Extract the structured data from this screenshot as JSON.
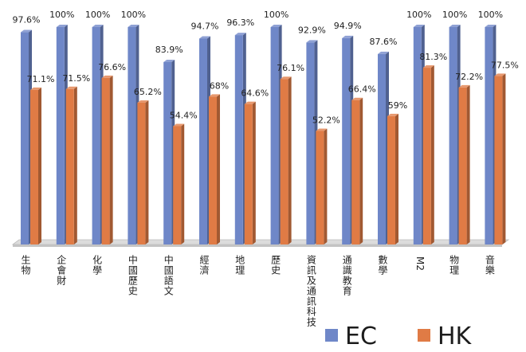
{
  "chart_data": {
    "type": "bar",
    "title": "",
    "xlabel": "",
    "ylabel": "",
    "ylim": [
      0,
      100
    ],
    "grid": false,
    "legend_position": "bottom-right",
    "categories": [
      "生物",
      "企會財",
      "化學",
      "中國歷史",
      "中國語文",
      "經濟",
      "地理",
      "歷史",
      "資訊及通訊科技",
      "通識教育",
      "數學",
      "M2",
      "物理",
      "音樂"
    ],
    "series": [
      {
        "name": "EC",
        "color": "#6f87c8",
        "values": [
          97.6,
          100,
          100,
          100,
          83.9,
          94.7,
          96.3,
          100,
          92.9,
          94.9,
          87.6,
          100,
          100,
          100
        ],
        "labels": [
          "97.6%",
          "100%",
          "100%",
          "100%",
          "83.9%",
          "94.7%",
          "96.3%",
          "100%",
          "92.9%",
          "94.9%",
          "87.6%",
          "100%",
          "100%",
          "100%"
        ]
      },
      {
        "name": "HK",
        "color": "#e07b45",
        "values": [
          71.1,
          71.5,
          76.6,
          65.2,
          54.4,
          68,
          64.6,
          76.1,
          52.2,
          66.4,
          59,
          81.3,
          72.2,
          77.5
        ],
        "labels": [
          "71.1%",
          "71.5%",
          "76.6%",
          "65.2%",
          "54.4%",
          "68%",
          "64.6%",
          "76.1%",
          "52.2%",
          "66.4%",
          "59%",
          "81.3%",
          "72.2%",
          "77.5%"
        ]
      }
    ]
  }
}
